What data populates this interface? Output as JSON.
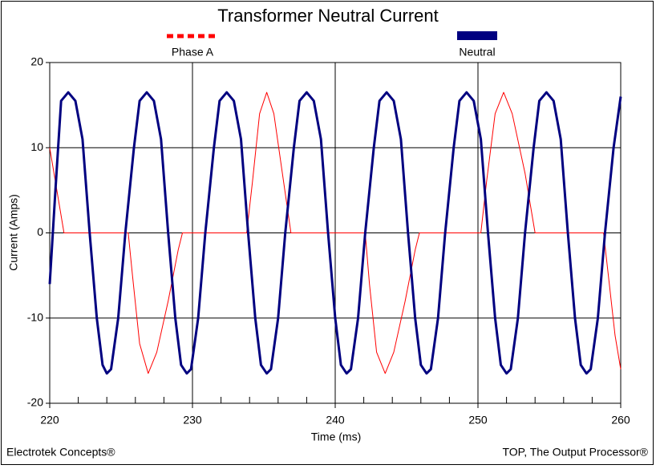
{
  "chart_data": {
    "type": "line",
    "title": "Transformer Neutral Current",
    "x_label": "Time (ms)",
    "y_label": "Current (Amps)",
    "footer_left": "Electrotek Concepts®",
    "footer_right": "TOP, The Output Processor®",
    "xlim": [
      220,
      260
    ],
    "ylim": [
      -20,
      20
    ],
    "xticks": [
      220,
      230,
      240,
      250,
      260
    ],
    "yticks": [
      -20,
      -10,
      0,
      10,
      20
    ],
    "grid": true,
    "series": [
      {
        "name": "Phase A",
        "color": "#ff0000",
        "width": 1,
        "legend_symbol": "dash",
        "x": [
          220,
          220.5,
          221,
          225.5,
          225.8,
          226.3,
          226.9,
          227.5,
          228.3,
          229.0,
          229.3,
          233.8,
          234.2,
          234.7,
          235.2,
          235.7,
          236.3,
          236.9,
          242.1,
          242.4,
          242.9,
          243.5,
          244.1,
          244.9,
          245.6,
          245.9,
          250.2,
          250.6,
          251.2,
          251.8,
          252.4,
          253.3,
          254.0,
          258.8,
          259.2,
          259.6,
          260
        ],
        "values": [
          10,
          5,
          0,
          0,
          -5,
          -13,
          -16.5,
          -14,
          -8,
          -2,
          0,
          0,
          6,
          14,
          16.5,
          14,
          7,
          0,
          0,
          -6,
          -14,
          -16.5,
          -14,
          -8,
          -2,
          0,
          0,
          6,
          14,
          16.5,
          14,
          7,
          0,
          0,
          -6,
          -12,
          -16
        ]
      },
      {
        "name": "Neutral",
        "color": "#000080",
        "width": 3,
        "legend_symbol": "bar",
        "x": [
          220,
          220.4,
          220.8,
          221.3,
          221.8,
          222.3,
          222.8,
          223.3,
          223.7,
          224.0,
          224.3,
          224.8,
          225.3,
          225.9,
          226.3,
          226.8,
          227.3,
          227.8,
          228.3,
          228.8,
          229.2,
          229.6,
          229.9,
          230.4,
          230.9,
          231.5,
          231.9,
          232.4,
          232.9,
          233.4,
          233.9,
          234.4,
          234.8,
          235.2,
          235.5,
          236.0,
          236.5,
          237.1,
          237.5,
          238.0,
          238.5,
          239.0,
          239.5,
          240.0,
          240.4,
          240.8,
          241.1,
          241.6,
          242.1,
          242.7,
          243.1,
          243.6,
          244.1,
          244.6,
          245.1,
          245.6,
          246.0,
          246.4,
          246.7,
          247.2,
          247.7,
          248.3,
          248.7,
          249.2,
          249.7,
          250.2,
          250.7,
          251.2,
          251.6,
          252.0,
          252.3,
          252.8,
          253.3,
          253.9,
          254.3,
          254.8,
          255.3,
          255.8,
          256.3,
          256.8,
          257.2,
          257.6,
          257.9,
          258.4,
          258.9,
          259.5,
          260.0
        ],
        "values": [
          -6,
          5,
          15.5,
          16.5,
          15.5,
          11,
          0,
          -10,
          -15.5,
          -16.5,
          -16,
          -10,
          0,
          10,
          15.5,
          16.5,
          15.5,
          11,
          0,
          -10,
          -15.5,
          -16.5,
          -16,
          -10,
          0,
          10,
          15.5,
          16.5,
          15.5,
          11,
          0,
          -10,
          -15.5,
          -16.5,
          -16,
          -10,
          0,
          10,
          15.5,
          16.5,
          15.5,
          11,
          0,
          -10,
          -15.5,
          -16.5,
          -16,
          -10,
          0,
          10,
          15.5,
          16.5,
          15.5,
          11,
          0,
          -10,
          -15.5,
          -16.5,
          -16,
          -10,
          0,
          10,
          15.5,
          16.5,
          15.5,
          11,
          0,
          -10,
          -15.5,
          -16.5,
          -16,
          -10,
          0,
          10,
          15.5,
          16.5,
          15.5,
          11,
          0,
          -10,
          -15.5,
          -16.5,
          -16,
          -10,
          0,
          10,
          16
        ]
      }
    ]
  }
}
